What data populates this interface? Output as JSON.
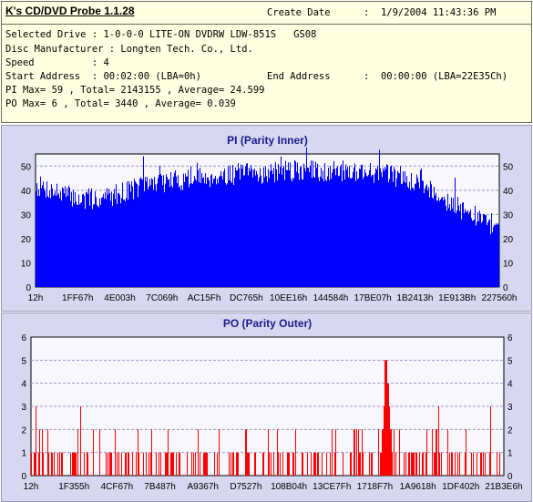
{
  "header": {
    "app_title": "K's CD/DVD Probe 1.1.28",
    "create_date_label": "Create Date",
    "create_date_value": ":  1/9/2004 11:43:36 PM",
    "selected_drive": "Selected Drive : 1-0-0-0 LITE-ON DVDRW LDW-851S   GS08",
    "disc_manufacturer": "Disc Manufacturer : Longten Tech. Co., Ltd.",
    "speed": "Speed          : 4",
    "start_address": "Start Address  : 00:02:00 (LBA=0h)",
    "end_address_label": "End Address",
    "end_address_value": ":  00:00:00 (LBA=22E35Ch)",
    "pi_stats": "PI Max= 59 , Total= 2143155 , Average= 24.599",
    "po_stats": "PO Max= 6 , Total= 3440 , Average= 0.039"
  },
  "colors": {
    "bar": "#0000ff",
    "po_bar": "#ff0000",
    "panel_bg": "#d7d7f2",
    "plot_bg": "#f7f7fd",
    "grid": "#9b9bc8",
    "title": "#1b1b8c"
  },
  "chart_data": [
    {
      "type": "bar",
      "title": "PI (Parity Inner)",
      "color": "#0000ff",
      "ylim": [
        0,
        55
      ],
      "y_ticks": [
        0,
        10,
        20,
        30,
        40,
        50
      ],
      "x_tick_labels": [
        "12h",
        "1FF67h",
        "4E003h",
        "7C069h",
        "AC15Fh",
        "DC765h",
        "10EE16h",
        "144584h",
        "17BE07h",
        "1B2413h",
        "1E913Bh",
        "227560h"
      ],
      "grid": true,
      "profile_x": [
        0,
        0.05,
        0.1,
        0.15,
        0.2,
        0.25,
        0.3,
        0.35,
        0.4,
        0.45,
        0.5,
        0.55,
        0.6,
        0.65,
        0.7,
        0.75,
        0.8,
        0.84,
        0.88,
        0.91,
        0.94,
        0.97,
        1.0
      ],
      "profile_y": [
        42,
        39,
        36,
        37,
        40,
        43,
        44,
        45,
        46,
        47,
        47,
        48,
        48,
        48,
        48,
        47,
        45,
        42,
        37,
        33,
        30,
        27,
        25
      ],
      "max": 59
    },
    {
      "type": "bar",
      "title": "PO (Parity Outer)",
      "color": "#ff0000",
      "ylim": [
        0,
        6
      ],
      "y_ticks": [
        0,
        1,
        2,
        3,
        4,
        5,
        6
      ],
      "x_tick_labels": [
        "12h",
        "1F355h",
        "4CF67h",
        "7B487h",
        "A9367h",
        "D7527h",
        "108B04h",
        "13CE7Fh",
        "1718F7h",
        "1A9618h",
        "1DF402h",
        "21B3E6h"
      ],
      "grid": true,
      "peak_region_fraction": [
        0.74,
        0.765
      ],
      "max": 6
    }
  ]
}
